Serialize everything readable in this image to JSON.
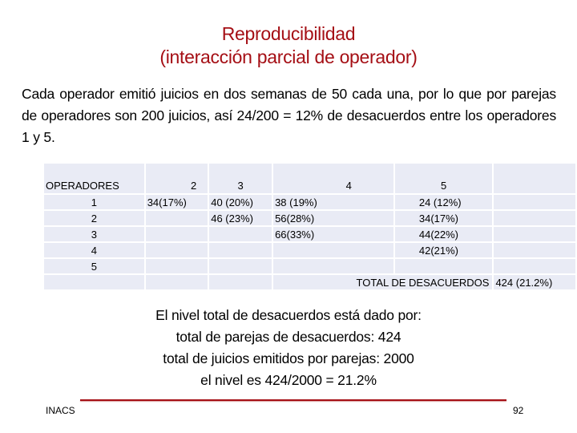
{
  "title": [
    "Reproducibilidad",
    "(interacción parcial de operador)"
  ],
  "intro": "Cada operador emitió juicios en dos semanas de 50 cada una, por lo que por parejas de operadores son 200 juicios, así 24/200 = 12% de desacuerdos entre los operadores 1 y 5.",
  "table": {
    "header": [
      "OPERADORES",
      "2",
      "3",
      "4",
      "5",
      ""
    ],
    "rows": [
      [
        "1",
        "34(17%)",
        "40 (20%)",
        "38 (19%)",
        "24 (12%)",
        ""
      ],
      [
        "2",
        "",
        "46 (23%)",
        "56(28%)",
        "34(17%)",
        ""
      ],
      [
        "3",
        "",
        "",
        "66(33%)",
        "44(22%)",
        ""
      ],
      [
        "4",
        "",
        "",
        "",
        "42(21%)",
        ""
      ],
      [
        "5",
        "",
        "",
        "",
        "",
        ""
      ]
    ],
    "total_label": "TOTAL DE DESACUERDOS",
    "total_value": "424 (21.2%)"
  },
  "conclusion": [
    "El nivel total de desacuerdos está dado por:",
    "total de parejas de desacuerdos: 424",
    "total de juicios emitidos por parejas: 2000",
    "el nivel es 424/2000 = 21.2%"
  ],
  "footer": {
    "left": "INACS",
    "page": "92"
  },
  "colors": {
    "title": "#a50f15",
    "table_fill": "#e9ebf5",
    "rule": "#a50f15"
  }
}
